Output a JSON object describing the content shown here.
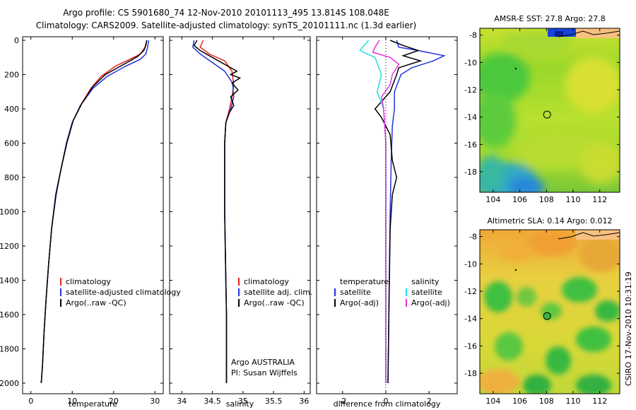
{
  "header": {
    "line1": "Argo profile: CS 5901680_74 12-Nov-2010 20101113_495 13.814S 108.048E",
    "line2": "Climatology: CARS2009. Satellite-adjusted climatology: synTS_20101111.nc (1.3d earlier)"
  },
  "side_label": "CSIRO 17-Nov-2010 10:31:19",
  "colors": {
    "clim": "#e8201a",
    "sat": "#2432e0",
    "argo": "#000000",
    "sat_sal": "#22e0e8",
    "argo_sal": "#e830e0"
  },
  "chart_data": [
    {
      "type": "line",
      "name": "temperature-profile",
      "xlabel": "temperature",
      "xlim": [
        -2,
        32
      ],
      "ylim": [
        2060,
        0
      ],
      "xticks": [
        0,
        10,
        20,
        30
      ],
      "yticks": [
        0,
        200,
        400,
        600,
        800,
        1000,
        1200,
        1400,
        1600,
        1800,
        2000
      ],
      "legend": [
        "climatology",
        "satellite-adjusted climatology",
        "Argo(..raw -QC)"
      ],
      "series": [
        {
          "name": "climatology",
          "color": "#e8201a",
          "points": [
            [
              28.0,
              0
            ],
            [
              27.6,
              40
            ],
            [
              26.5,
              80
            ],
            [
              24.0,
              110
            ],
            [
              20.5,
              150
            ],
            [
              17.0,
              210
            ],
            [
              14.5,
              280
            ],
            [
              12.0,
              380
            ],
            [
              10.0,
              480
            ],
            [
              8.6,
              600
            ],
            [
              7.3,
              750
            ],
            [
              6.0,
              900
            ],
            [
              5.0,
              1100
            ],
            [
              4.3,
              1300
            ],
            [
              3.7,
              1500
            ],
            [
              3.2,
              1700
            ],
            [
              2.8,
              1900
            ],
            [
              2.5,
              2000
            ]
          ]
        },
        {
          "name": "satellite-adjusted climatology",
          "color": "#2432e0",
          "points": [
            [
              28.5,
              0
            ],
            [
              28.2,
              40
            ],
            [
              27.8,
              80
            ],
            [
              26.5,
              110
            ],
            [
              23.0,
              150
            ],
            [
              18.5,
              210
            ],
            [
              15.0,
              280
            ],
            [
              12.0,
              380
            ],
            [
              10.0,
              480
            ],
            [
              8.6,
              600
            ],
            [
              7.3,
              750
            ],
            [
              6.0,
              900
            ],
            [
              5.0,
              1100
            ],
            [
              4.3,
              1300
            ],
            [
              3.7,
              1500
            ],
            [
              3.2,
              1700
            ],
            [
              2.8,
              1900
            ],
            [
              2.5,
              2000
            ]
          ]
        },
        {
          "name": "Argo(..raw -QC)",
          "color": "#000000",
          "points": [
            [
              28.0,
              0
            ],
            [
              27.8,
              30
            ],
            [
              27.3,
              60
            ],
            [
              25.8,
              95
            ],
            [
              22.5,
              140
            ],
            [
              18.0,
              200
            ],
            [
              15.0,
              270
            ],
            [
              12.3,
              370
            ],
            [
              10.2,
              470
            ],
            [
              8.7,
              600
            ],
            [
              7.3,
              750
            ],
            [
              6.1,
              900
            ],
            [
              5.0,
              1100
            ],
            [
              4.3,
              1300
            ],
            [
              3.7,
              1500
            ],
            [
              3.2,
              1700
            ],
            [
              2.8,
              1900
            ],
            [
              2.5,
              2000
            ]
          ]
        }
      ]
    },
    {
      "type": "line",
      "name": "salinity-profile",
      "xlabel": "salinity",
      "xlim": [
        33.8,
        36.1
      ],
      "ylim": [
        2060,
        0
      ],
      "xticks": [
        34,
        34.5,
        35,
        35.5,
        36
      ],
      "legend": [
        "climatology",
        "satellite adj. clim.",
        "Argo(..raw -QC)"
      ],
      "note": [
        "Argo AUSTRALIA",
        "PI: Susan Wijffels"
      ],
      "series": [
        {
          "name": "climatology",
          "color": "#e8201a",
          "points": [
            [
              34.35,
              0
            ],
            [
              34.3,
              40
            ],
            [
              34.45,
              80
            ],
            [
              34.7,
              120
            ],
            [
              34.82,
              180
            ],
            [
              34.85,
              260
            ],
            [
              34.82,
              330
            ],
            [
              34.78,
              400
            ],
            [
              34.72,
              480
            ],
            [
              34.7,
              600
            ],
            [
              34.7,
              1000
            ],
            [
              34.72,
              1400
            ],
            [
              34.73,
              1600
            ],
            [
              34.73,
              2000
            ]
          ]
        },
        {
          "name": "satellite adj. clim.",
          "color": "#2432e0",
          "points": [
            [
              34.2,
              0
            ],
            [
              34.18,
              40
            ],
            [
              34.3,
              80
            ],
            [
              34.5,
              130
            ],
            [
              34.7,
              180
            ],
            [
              34.83,
              250
            ],
            [
              34.85,
              330
            ],
            [
              34.8,
              400
            ],
            [
              34.72,
              480
            ],
            [
              34.7,
              600
            ],
            [
              34.7,
              1000
            ],
            [
              34.72,
              1400
            ],
            [
              34.73,
              1600
            ],
            [
              34.73,
              2000
            ]
          ]
        },
        {
          "name": "Argo(..raw -QC)",
          "color": "#000000",
          "points": [
            [
              34.25,
              0
            ],
            [
              34.2,
              30
            ],
            [
              34.3,
              60
            ],
            [
              34.5,
              100
            ],
            [
              34.75,
              150
            ],
            [
              34.9,
              180
            ],
            [
              34.8,
              200
            ],
            [
              34.95,
              220
            ],
            [
              34.82,
              250
            ],
            [
              34.92,
              290
            ],
            [
              34.8,
              330
            ],
            [
              34.85,
              380
            ],
            [
              34.78,
              420
            ],
            [
              34.72,
              480
            ],
            [
              34.7,
              600
            ],
            [
              34.7,
              1000
            ],
            [
              34.72,
              1400
            ],
            [
              34.73,
              1600
            ],
            [
              34.73,
              2000
            ]
          ]
        }
      ]
    },
    {
      "type": "line",
      "name": "difference-profile",
      "xlabel": "difference from climatology",
      "xlim": [
        -3.2,
        3.3
      ],
      "ylim": [
        2060,
        0
      ],
      "xticks": [
        -2,
        0,
        2
      ],
      "legend_left": {
        "title": "temperature",
        "items": [
          "satellite",
          "Argo(-adj)"
        ]
      },
      "legend_right": {
        "title": "salinity",
        "items": [
          "satellite",
          "Argo(-adj)"
        ]
      },
      "series": [
        {
          "name": "temperature satellite",
          "color": "#2432e0",
          "points": [
            [
              0.5,
              0
            ],
            [
              0.6,
              40
            ],
            [
              1.5,
              60
            ],
            [
              2.7,
              90
            ],
            [
              2.2,
              120
            ],
            [
              1.2,
              160
            ],
            [
              0.7,
              200
            ],
            [
              0.4,
              300
            ],
            [
              0.4,
              400
            ],
            [
              0.3,
              500
            ],
            [
              0.25,
              700
            ],
            [
              0.2,
              1000
            ],
            [
              0.15,
              1500
            ],
            [
              0.1,
              2000
            ]
          ]
        },
        {
          "name": "temperature Argo(-adj)",
          "color": "#000000",
          "points": [
            [
              0.2,
              0
            ],
            [
              0.8,
              30
            ],
            [
              1.5,
              60
            ],
            [
              0.8,
              90
            ],
            [
              1.6,
              120
            ],
            [
              0.6,
              160
            ],
            [
              0.5,
              200
            ],
            [
              0.2,
              300
            ],
            [
              -0.5,
              400
            ],
            [
              -0.2,
              450
            ],
            [
              0.2,
              550
            ],
            [
              0.3,
              700
            ],
            [
              0.5,
              800
            ],
            [
              0.3,
              900
            ],
            [
              0.2,
              1100
            ],
            [
              0.15,
              1500
            ],
            [
              0.1,
              2000
            ]
          ]
        },
        {
          "name": "salinity satellite",
          "color": "#22e0e8",
          "points": [
            [
              -0.8,
              0
            ],
            [
              -1.2,
              60
            ],
            [
              -0.5,
              100
            ],
            [
              -0.2,
              200
            ],
            [
              -0.4,
              300
            ],
            [
              -0.1,
              400
            ],
            [
              0.0,
              600
            ],
            [
              0.0,
              1000
            ],
            [
              0.0,
              2000
            ]
          ]
        },
        {
          "name": "salinity Argo(-adj)",
          "color": "#e830e0",
          "points": [
            [
              -0.3,
              0
            ],
            [
              -0.5,
              40
            ],
            [
              -0.6,
              70
            ],
            [
              0.2,
              100
            ],
            [
              0.6,
              140
            ],
            [
              0.3,
              200
            ],
            [
              0.2,
              260
            ],
            [
              -0.2,
              330
            ],
            [
              -0.1,
              400
            ],
            [
              0.0,
              600
            ],
            [
              0.0,
              1000
            ],
            [
              0.0,
              2000
            ]
          ]
        }
      ]
    },
    {
      "type": "heatmap",
      "name": "amsre-sst-map",
      "title": "AMSR-E SST: 27.8 Argo: 27.8",
      "xticks": [
        104,
        106,
        108,
        110,
        112
      ],
      "yticks": [
        -8,
        -10,
        -12,
        -14,
        -16,
        -18
      ],
      "xlim": [
        103,
        113.5
      ],
      "ylim": [
        -19.5,
        -7.5
      ],
      "marker": [
        108.048,
        -13.814
      ]
    },
    {
      "type": "heatmap",
      "name": "altimetric-sla-map",
      "title": "Altimetric SLA: 0.14 Argo: 0.012",
      "xticks": [
        104,
        106,
        108,
        110,
        112
      ],
      "yticks": [
        -8,
        -10,
        -12,
        -14,
        -16,
        -18
      ],
      "xlim": [
        103,
        113.5
      ],
      "ylim": [
        -19.5,
        -7.5
      ],
      "marker": [
        108.048,
        -13.814
      ]
    }
  ]
}
